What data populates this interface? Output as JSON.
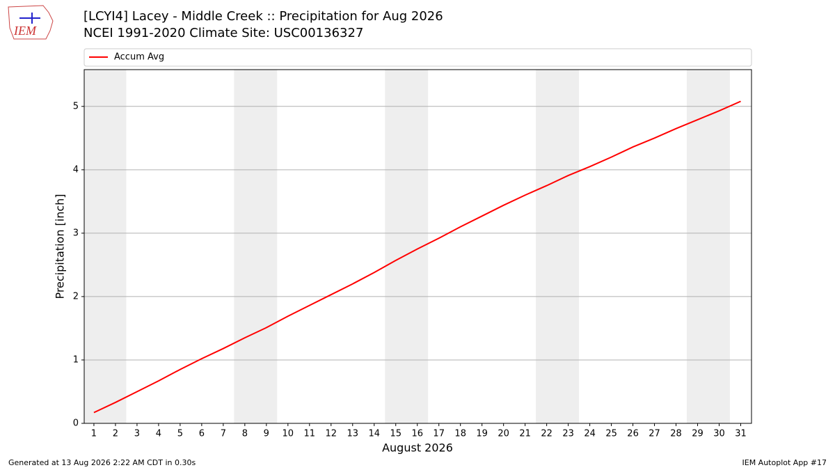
{
  "logo_text": "IEM",
  "footer": {
    "left": "Generated at 13 Aug 2026 2:22 AM CDT in 0.30s",
    "right": "IEM Autoplot App #17"
  },
  "chart_data": {
    "type": "line",
    "title": "[LCYI4] Lacey - Middle Creek :: Precipitation for Aug 2026",
    "subtitle": "NCEI 1991-2020 Climate Site: USC00136327",
    "x_label": "August 2026",
    "y_label": "Precipitation [inch]",
    "x": [
      1,
      2,
      3,
      4,
      5,
      6,
      7,
      8,
      9,
      10,
      11,
      12,
      13,
      14,
      15,
      16,
      17,
      18,
      19,
      20,
      21,
      22,
      23,
      24,
      25,
      26,
      27,
      28,
      29,
      30,
      31
    ],
    "series": [
      {
        "name": "Accum Avg",
        "color": "#ff0000",
        "values": [
          0.17,
          0.33,
          0.5,
          0.67,
          0.85,
          1.02,
          1.18,
          1.35,
          1.51,
          1.69,
          1.86,
          2.03,
          2.2,
          2.38,
          2.57,
          2.75,
          2.92,
          3.1,
          3.27,
          3.44,
          3.6,
          3.75,
          3.91,
          4.05,
          4.2,
          4.36,
          4.5,
          4.65,
          4.79,
          4.93,
          5.08
        ]
      }
    ],
    "xlim": [
      0.55,
      31.5
    ],
    "ylim": [
      0,
      5.58
    ],
    "xticks": [
      1,
      2,
      3,
      4,
      5,
      6,
      7,
      8,
      9,
      10,
      11,
      12,
      13,
      14,
      15,
      16,
      17,
      18,
      19,
      20,
      21,
      22,
      23,
      24,
      25,
      26,
      27,
      28,
      29,
      30,
      31
    ],
    "yticks": [
      0,
      1,
      2,
      3,
      4,
      5
    ],
    "grid": true,
    "legend": "top",
    "shaded": [
      [
        0.5,
        2.5
      ],
      [
        7.5,
        9.5
      ],
      [
        14.5,
        16.5
      ],
      [
        21.5,
        23.5
      ],
      [
        28.5,
        30.5
      ]
    ],
    "shade_color": "#eeeeee"
  }
}
